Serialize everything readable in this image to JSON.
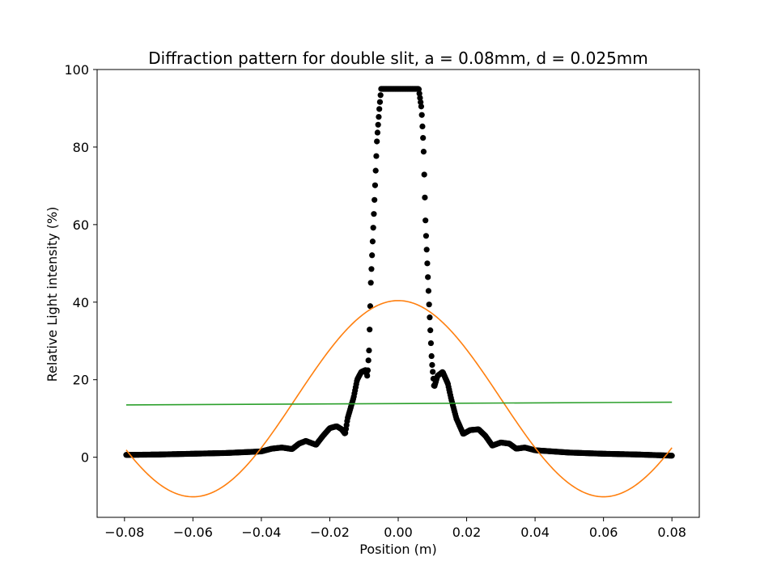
{
  "chart_data": {
    "type": "scatter",
    "title": "Diffraction pattern for double slit, a = 0.08mm, d = 0.025mm",
    "xlabel": "Position (m)",
    "ylabel": "Relative Light intensity (%)",
    "xlim": [
      -0.088,
      0.088
    ],
    "ylim": [
      -15.5,
      100
    ],
    "xticks": [
      -0.08,
      -0.06,
      -0.04,
      -0.02,
      0.0,
      0.02,
      0.04,
      0.06,
      0.08
    ],
    "xtick_labels": [
      "−0.08",
      "−0.06",
      "−0.04",
      "−0.02",
      "0.00",
      "0.02",
      "0.04",
      "0.06",
      "0.08"
    ],
    "yticks": [
      0,
      20,
      40,
      60,
      80,
      100
    ],
    "ytick_labels": [
      "0",
      "20",
      "40",
      "60",
      "80",
      "100"
    ],
    "grid": false,
    "series": [
      {
        "kind": "scatter",
        "color": "#000000",
        "x_range": [
          -0.0795,
          0.08
        ],
        "profile": [
          [
            -0.0795,
            0.6
          ],
          [
            -0.07,
            0.7
          ],
          [
            -0.06,
            0.9
          ],
          [
            -0.05,
            1.1
          ],
          [
            -0.045,
            1.3
          ],
          [
            -0.04,
            1.5
          ],
          [
            -0.037,
            2.2
          ],
          [
            -0.034,
            2.5
          ],
          [
            -0.031,
            2.1
          ],
          [
            -0.029,
            3.5
          ],
          [
            -0.027,
            4.2
          ],
          [
            -0.024,
            3.2
          ],
          [
            -0.022,
            5.5
          ],
          [
            -0.02,
            7.5
          ],
          [
            -0.018,
            8.0
          ],
          [
            -0.0165,
            7.2
          ],
          [
            -0.0155,
            6.0
          ],
          [
            -0.0148,
            10.0
          ],
          [
            -0.013,
            15.5
          ],
          [
            -0.012,
            20.0
          ],
          [
            -0.0108,
            22.0
          ],
          [
            -0.0095,
            22.5
          ],
          [
            -0.009,
            20.8
          ],
          [
            -0.0085,
            28.0
          ],
          [
            -0.008,
            45.0
          ],
          [
            -0.007,
            65.0
          ],
          [
            -0.0062,
            82.0
          ],
          [
            -0.0055,
            90.0
          ],
          [
            -0.005,
            95.0
          ],
          [
            0.006,
            95.0
          ],
          [
            0.0068,
            90.0
          ],
          [
            0.0074,
            80.0
          ],
          [
            0.008,
            60.0
          ],
          [
            0.009,
            40.0
          ],
          [
            0.0098,
            25.0
          ],
          [
            0.0105,
            18.0
          ],
          [
            0.0115,
            21.0
          ],
          [
            0.013,
            22.0
          ],
          [
            0.0145,
            19.0
          ],
          [
            0.0155,
            15.0
          ],
          [
            0.017,
            10.0
          ],
          [
            0.019,
            6.0
          ],
          [
            0.021,
            7.0
          ],
          [
            0.0235,
            7.2
          ],
          [
            0.0255,
            5.5
          ],
          [
            0.0275,
            3.0
          ],
          [
            0.03,
            3.8
          ],
          [
            0.0325,
            3.5
          ],
          [
            0.0345,
            2.2
          ],
          [
            0.037,
            2.5
          ],
          [
            0.04,
            1.8
          ],
          [
            0.05,
            1.2
          ],
          [
            0.06,
            0.9
          ],
          [
            0.07,
            0.7
          ],
          [
            0.08,
            0.4
          ]
        ]
      },
      {
        "kind": "line",
        "color": "#ff7f0e",
        "x_range": [
          -0.0795,
          0.08
        ],
        "model": "A*cos(k*x)+C",
        "A": 25.3,
        "k": 52.36,
        "C": 15.1
      },
      {
        "kind": "line",
        "color": "#2ca02c",
        "x": [
          -0.0795,
          0.08
        ],
        "y": [
          13.5,
          14.2
        ]
      }
    ]
  }
}
